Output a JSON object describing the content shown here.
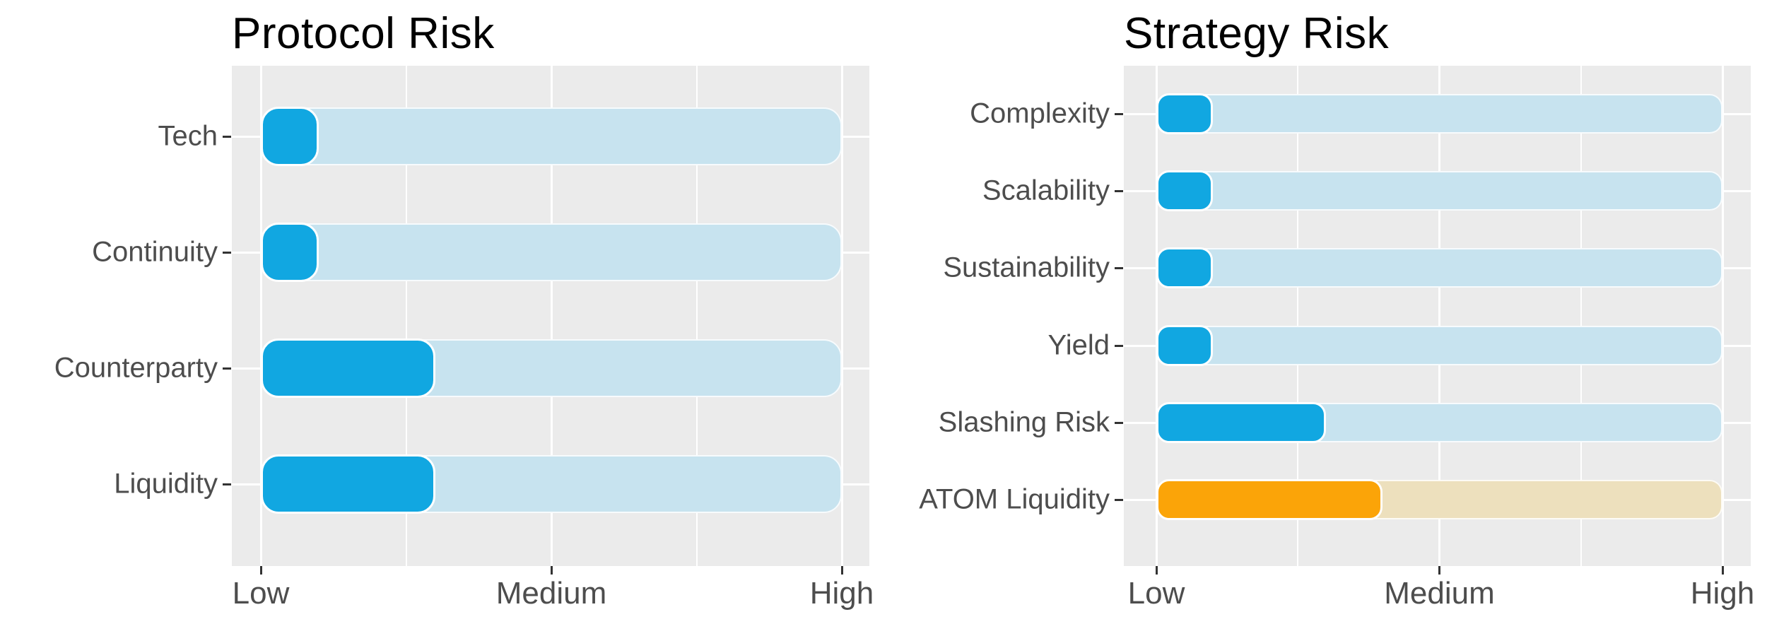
{
  "figure": {
    "background": "#ffffff",
    "description": "Two horizontal risk-level bullet charts"
  },
  "colors": {
    "panel_background": "#ebebeb",
    "gridline": "#ffffff",
    "bar_fill_blue": "#11a7e1",
    "bar_track_blue": "#c7e3ef",
    "bar_fill_orange": "#fba408",
    "bar_track_orange": "#ede0bd",
    "axis_text": "#4d4d4d",
    "tick_mark": "#333333",
    "title_text": "#000000"
  },
  "chart_data": [
    {
      "type": "bar",
      "orientation": "horizontal",
      "title": "Protocol Risk",
      "categories": [
        "Tech",
        "Continuity",
        "Counterparty",
        "Liquidity"
      ],
      "values": [
        0.1,
        0.1,
        0.3,
        0.3
      ],
      "track_full_value": 1,
      "xlim": [
        0,
        1
      ],
      "x_tick_labels": [
        "Low",
        "Medium",
        "High"
      ],
      "x_tick_values": [
        0,
        0.5,
        1
      ],
      "x_minor_tick_values": [
        0.25,
        0.75
      ],
      "fill_colors": [
        "#11a7e1",
        "#11a7e1",
        "#11a7e1",
        "#11a7e1"
      ],
      "track_colors": [
        "#c7e3ef",
        "#c7e3ef",
        "#c7e3ef",
        "#c7e3ef"
      ],
      "grid": "white major x/y + minor x on gray panel",
      "legend": "none"
    },
    {
      "type": "bar",
      "orientation": "horizontal",
      "title": "Strategy Risk",
      "categories": [
        "Complexity",
        "Scalability",
        "Sustainability",
        "Yield",
        "Slashing Risk",
        "ATOM Liquidity"
      ],
      "values": [
        0.1,
        0.1,
        0.1,
        0.1,
        0.3,
        0.4
      ],
      "track_full_value": 1,
      "xlim": [
        0,
        1
      ],
      "x_tick_labels": [
        "Low",
        "Medium",
        "High"
      ],
      "x_tick_values": [
        0,
        0.5,
        1
      ],
      "x_minor_tick_values": [
        0.25,
        0.75
      ],
      "fill_colors": [
        "#11a7e1",
        "#11a7e1",
        "#11a7e1",
        "#11a7e1",
        "#11a7e1",
        "#fba408"
      ],
      "track_colors": [
        "#c7e3ef",
        "#c7e3ef",
        "#c7e3ef",
        "#c7e3ef",
        "#c7e3ef",
        "#ede0bd"
      ],
      "grid": "white major x/y + minor x on gray panel",
      "legend": "none"
    }
  ]
}
